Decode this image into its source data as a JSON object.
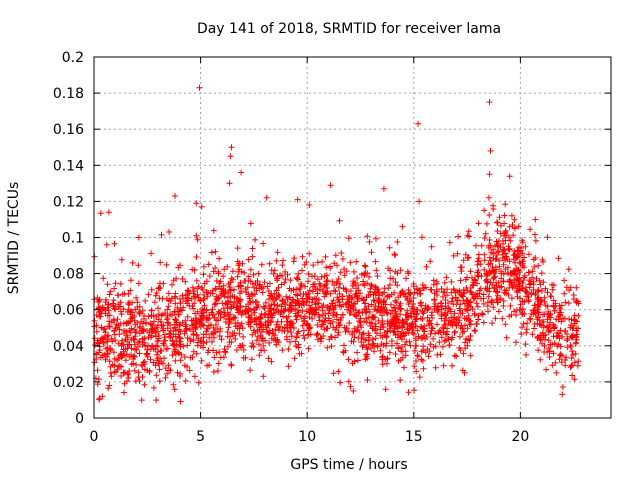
{
  "chart_data": {
    "type": "scatter",
    "title": "Day 141 of 2018, SRMTID for receiver lama",
    "xlabel": "GPS time / hours",
    "ylabel": "SRMTID / TECUs",
    "xlim": [
      0,
      24.25
    ],
    "ylim": [
      0,
      0.2
    ],
    "xticks": [
      0,
      5,
      10,
      15,
      20
    ],
    "xtick_labels": [
      "0",
      "5",
      "10",
      "15",
      "20"
    ],
    "yticks": [
      0,
      0.02,
      0.04,
      0.06,
      0.08,
      0.1,
      0.12,
      0.14,
      0.16,
      0.18,
      0.2
    ],
    "ytick_labels": [
      "0",
      "0.02",
      "0.04",
      "0.06",
      "0.08",
      "0.1",
      "0.12",
      "0.14",
      "0.16",
      "0.18",
      "0.2"
    ],
    "grid": true,
    "marker": "+",
    "series": [
      {
        "name": "SRMTID",
        "color": "#ff0000",
        "x_start": 0.0,
        "x_end": 22.75,
        "baseline": [
          [
            0,
            0.045
          ],
          [
            1,
            0.046
          ],
          [
            2,
            0.044
          ],
          [
            3,
            0.045
          ],
          [
            4,
            0.048
          ],
          [
            5,
            0.055
          ],
          [
            6,
            0.058
          ],
          [
            7,
            0.06
          ],
          [
            8,
            0.057
          ],
          [
            9,
            0.058
          ],
          [
            10,
            0.06
          ],
          [
            11,
            0.062
          ],
          [
            12,
            0.058
          ],
          [
            13,
            0.057
          ],
          [
            14,
            0.055
          ],
          [
            15,
            0.053
          ],
          [
            16,
            0.055
          ],
          [
            17,
            0.058
          ],
          [
            18,
            0.068
          ],
          [
            19,
            0.085
          ],
          [
            20,
            0.078
          ],
          [
            21,
            0.055
          ],
          [
            22,
            0.048
          ],
          [
            22.75,
            0.046
          ]
        ],
        "spread": 0.032,
        "point_count": 2600,
        "outliers": [
          [
            4.95,
            0.183
          ],
          [
            18.55,
            0.175
          ],
          [
            15.2,
            0.163
          ],
          [
            6.45,
            0.15
          ],
          [
            18.6,
            0.148
          ],
          [
            6.4,
            0.145
          ],
          [
            6.9,
            0.136
          ],
          [
            18.55,
            0.135
          ],
          [
            6.35,
            0.13
          ],
          [
            11.1,
            0.129
          ],
          [
            13.6,
            0.127
          ],
          [
            3.8,
            0.123
          ],
          [
            8.1,
            0.122
          ],
          [
            9.55,
            0.121
          ],
          [
            15.25,
            0.12
          ],
          [
            4.8,
            0.119
          ],
          [
            5.05,
            0.117
          ],
          [
            10.1,
            0.118
          ],
          [
            18.3,
            0.115
          ],
          [
            0.7,
            0.114
          ],
          [
            19.6,
            0.112
          ],
          [
            20.7,
            0.11
          ],
          [
            2.1,
            0.1
          ],
          [
            0.6,
            0.096
          ]
        ]
      }
    ]
  }
}
